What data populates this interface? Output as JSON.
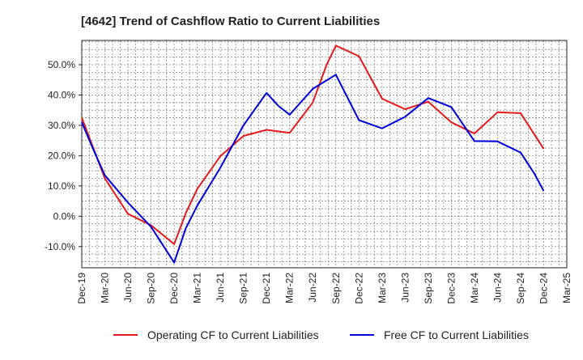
{
  "chart_data": {
    "type": "line",
    "title": "[4642]  Trend of Cashflow Ratio to Current Liabilities",
    "xlabel": "",
    "ylabel": "",
    "ylim": [
      -17,
      58
    ],
    "y_ticks": [
      -10,
      0,
      10,
      20,
      30,
      40,
      50
    ],
    "y_tick_labels": [
      "-10.0%",
      "0.0%",
      "10.0%",
      "20.0%",
      "30.0%",
      "40.0%",
      "50.0%"
    ],
    "grid": true,
    "legend_position": "bottom",
    "x_tick_labels": [
      "Dec-19",
      "Mar-20",
      "Jun-20",
      "Sep-20",
      "Dec-20",
      "Mar-21",
      "Jun-21",
      "Sep-21",
      "Dec-21",
      "Mar-22",
      "Jun-22",
      "Sep-22",
      "Dec-22",
      "Mar-23",
      "Jun-23",
      "Sep-23",
      "Dec-23",
      "Mar-24",
      "Jun-24",
      "Sep-24",
      "Dec-24",
      "Mar-25"
    ],
    "series": [
      {
        "name": "Operating CF to Current Liabilities",
        "color": "#e41a1c",
        "points": [
          [
            0,
            32.5
          ],
          [
            1,
            12.5
          ],
          [
            2,
            0.8
          ],
          [
            3,
            -3.0
          ],
          [
            4,
            -9.2
          ],
          [
            4.5,
            1.0
          ],
          [
            5,
            9.0
          ],
          [
            6,
            19.8
          ],
          [
            7,
            26.5
          ],
          [
            8,
            28.5
          ],
          [
            9,
            27.5
          ],
          [
            10,
            37.5
          ],
          [
            10.6,
            50.0
          ],
          [
            11,
            56.3
          ],
          [
            12,
            52.8
          ],
          [
            13,
            38.8
          ],
          [
            14,
            35.3
          ],
          [
            15,
            37.8
          ],
          [
            16,
            31.0
          ],
          [
            17,
            27.3
          ],
          [
            18,
            34.3
          ],
          [
            19,
            34.0
          ],
          [
            20,
            22.2
          ]
        ]
      },
      {
        "name": "Free CF to Current Liabilities",
        "color": "#0000dd",
        "points": [
          [
            0,
            31.0
          ],
          [
            0.5,
            22.0
          ],
          [
            1,
            13.5
          ],
          [
            2,
            4.5
          ],
          [
            3,
            -3.5
          ],
          [
            4,
            -15.3
          ],
          [
            4.5,
            -4.0
          ],
          [
            5,
            3.5
          ],
          [
            6,
            16.0
          ],
          [
            7,
            30.0
          ],
          [
            8,
            40.7
          ],
          [
            8.5,
            36.5
          ],
          [
            9,
            33.5
          ],
          [
            10,
            42.0
          ],
          [
            11,
            46.7
          ],
          [
            12,
            31.7
          ],
          [
            13,
            29.0
          ],
          [
            14,
            32.8
          ],
          [
            15,
            39.0
          ],
          [
            16,
            36.0
          ],
          [
            17,
            24.8
          ],
          [
            18,
            24.7
          ],
          [
            19,
            21.0
          ],
          [
            19.6,
            14.0
          ],
          [
            20,
            8.3
          ]
        ]
      }
    ]
  }
}
